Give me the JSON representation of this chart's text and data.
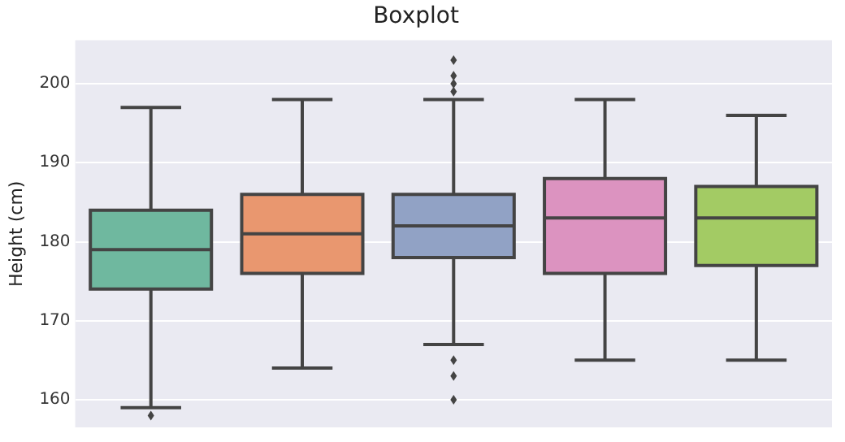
{
  "chart_data": {
    "type": "box",
    "title": "Boxplot",
    "ylabel": "Height (cm)",
    "categories": [
      null,
      null,
      null,
      null,
      null
    ],
    "boxes": [
      {
        "low": 159,
        "q1": 174,
        "median": 179,
        "q3": 184,
        "high": 197,
        "outliers": [
          158
        ]
      },
      {
        "low": 164,
        "q1": 176,
        "median": 181,
        "q3": 186,
        "high": 198
      },
      {
        "low": 167,
        "q1": 178,
        "median": 182,
        "q3": 186,
        "high": 198,
        "outliers": [
          203,
          201,
          200,
          199,
          165,
          163,
          160
        ]
      },
      {
        "low": 165,
        "q1": 176,
        "median": 183,
        "q3": 188,
        "high": 198
      },
      {
        "low": 165,
        "q1": 177,
        "median": 183,
        "q3": 187,
        "high": 196
      }
    ],
    "colors": [
      "#6fb89f",
      "#e9976f",
      "#91a2c5",
      "#dc93c0",
      "#a3cb64"
    ],
    "ylim": [
      156.5,
      205.5
    ],
    "yticks": [
      160,
      170,
      180,
      190,
      200
    ],
    "grid": "y",
    "tick_labels": "y",
    "legend": false
  }
}
